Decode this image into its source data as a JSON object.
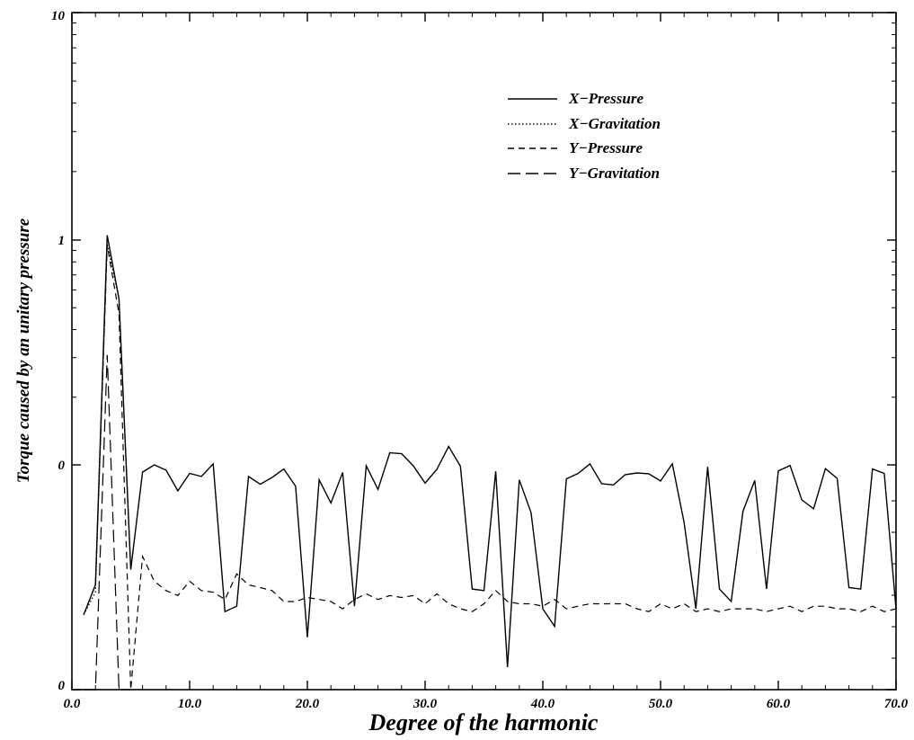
{
  "chart_data": {
    "type": "line",
    "xlabel": "Degree of the harmonic",
    "ylabel": "Torque caused by an unitary pressure",
    "xlim": [
      0,
      70
    ],
    "y_scale": "log-like (labels 0, 0, 1, 10)",
    "x_ticks": [
      "0.0",
      "10.0",
      "20.0",
      "30.0",
      "40.0",
      "50.0",
      "60.0",
      "70.0"
    ],
    "y_tick_labels": [
      "0",
      "0",
      "1",
      "10"
    ],
    "legend_position": "top-right",
    "series": [
      {
        "name": "X−Pressure",
        "style": "solid",
        "x": [
          1,
          2,
          3,
          4,
          5,
          6,
          7,
          8,
          9,
          10,
          11,
          12,
          13,
          14,
          15,
          16,
          17,
          18,
          19,
          20,
          21,
          22,
          23,
          24,
          25,
          26,
          27,
          28,
          29,
          30,
          31,
          32,
          33,
          34,
          35,
          36,
          37,
          38,
          39,
          40,
          41,
          42,
          43,
          44,
          45,
          46,
          47,
          48,
          49,
          50,
          51,
          52,
          53,
          54,
          55,
          56,
          57,
          58,
          59,
          60,
          61,
          62,
          63,
          64,
          65,
          66,
          67,
          68,
          69,
          70
        ],
        "y": [
          0.0001,
          0.00025,
          1.05,
          0.3,
          0.0004,
          0.008,
          0.01,
          0.0085,
          0.0045,
          0.0077,
          0.007,
          0.0102,
          0.00011,
          0.00013,
          0.007,
          0.0055,
          0.0068,
          0.0088,
          0.0052,
          5e-05,
          0.0063,
          0.0031,
          0.0079,
          0.00013,
          0.0097,
          0.0047,
          0.0128,
          0.0126,
          0.0097,
          0.0057,
          0.0087,
          0.0146,
          0.0096,
          0.00022,
          0.00021,
          0.0082,
          2e-05,
          0.0063,
          0.0023,
          0.00012,
          7e-05,
          0.0065,
          0.0077,
          0.0102,
          0.0056,
          0.0054,
          0.0074,
          0.0078,
          0.0076,
          0.0061,
          0.0102,
          0.0017,
          0.00012,
          0.0094,
          0.00022,
          0.00015,
          0.0024,
          0.0062,
          0.00022,
          0.0083,
          0.0098,
          0.0034,
          0.0026,
          0.0089,
          0.0066,
          0.00023,
          0.00022,
          0.0088,
          0.0077,
          0.00012
        ]
      },
      {
        "name": "X−Gravitation",
        "style": "dotted",
        "x": [
          1,
          2,
          3,
          4,
          5
        ],
        "y": [
          0.0001,
          0.0002,
          0.92,
          0.3,
          0.0004
        ]
      },
      {
        "name": "Y−Pressure",
        "style": "dashed",
        "x": [
          1,
          2,
          3,
          4,
          5,
          6,
          7,
          8,
          9,
          10,
          11,
          12,
          13,
          14,
          15,
          16,
          17,
          18,
          19,
          20,
          21,
          22,
          23,
          24,
          25,
          26,
          27,
          28,
          29,
          30,
          31,
          32,
          33,
          34,
          35,
          36,
          37,
          38,
          39,
          40,
          41,
          42,
          43,
          44,
          45,
          46,
          47,
          48,
          49,
          50,
          51,
          52,
          53,
          54,
          55,
          56,
          57,
          58,
          59,
          60,
          61,
          62,
          63,
          64,
          65,
          66,
          67,
          68,
          69,
          70
        ],
        "y": [
          0.0001,
          0.00025,
          0.9,
          0.22,
          1e-05,
          0.0006,
          0.00028,
          0.00021,
          0.00018,
          0.00028,
          0.00021,
          0.0002,
          0.00016,
          0.00035,
          0.00025,
          0.00023,
          0.00021,
          0.00015,
          0.00015,
          0.00017,
          0.00016,
          0.00015,
          0.00012,
          0.00016,
          0.00019,
          0.00016,
          0.00018,
          0.00017,
          0.00018,
          0.00014,
          0.00019,
          0.00014,
          0.00012,
          0.00011,
          0.00014,
          0.00021,
          0.00015,
          0.00014,
          0.00014,
          0.00013,
          0.00016,
          0.00012,
          0.00013,
          0.00014,
          0.00014,
          0.00014,
          0.00014,
          0.00012,
          0.00011,
          0.00014,
          0.00012,
          0.00014,
          0.00011,
          0.00012,
          0.00011,
          0.00012,
          0.00012,
          0.00012,
          0.00011,
          0.00012,
          0.00013,
          0.00011,
          0.00013,
          0.00013,
          0.00012,
          0.00012,
          0.00011,
          0.00013,
          0.00011,
          0.00012
        ]
      },
      {
        "name": "Y−Gravitation",
        "style": "long-dashed",
        "x": [
          1,
          2,
          3,
          4,
          5
        ],
        "y": [
          1e-05,
          1e-05,
          0.095,
          1e-05,
          1e-05
        ]
      }
    ]
  }
}
